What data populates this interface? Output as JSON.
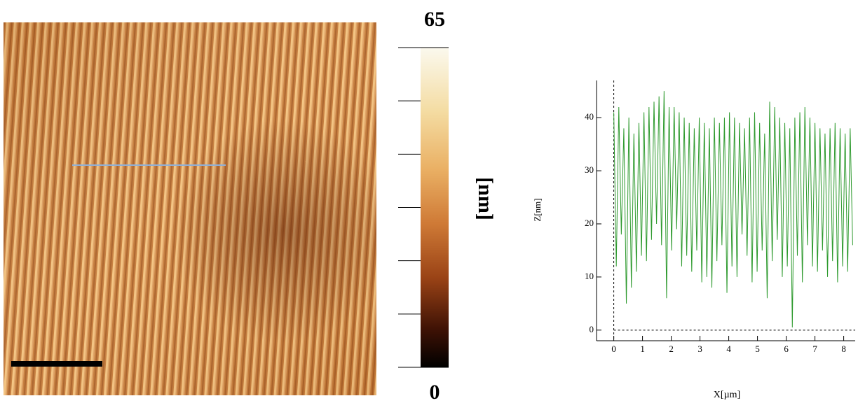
{
  "chart_data": [
    {
      "type": "image",
      "colorbar": {
        "range": [
          0,
          65
        ],
        "ticks": [
          0,
          65
        ],
        "label": "[nm]"
      }
    },
    {
      "type": "line",
      "xlabel": "X[µm]",
      "ylabel": "Z[nm]",
      "xlim": [
        -0.6,
        8.4
      ],
      "ylim": [
        -2,
        47
      ],
      "xticks": [
        0,
        1,
        2,
        3,
        4,
        5,
        6,
        7,
        8
      ],
      "yticks": [
        0,
        10,
        20,
        30,
        40
      ],
      "color": "#2e9a2e",
      "x": [
        0,
        0.0875,
        0.175,
        0.2625,
        0.35,
        0.4375,
        0.525,
        0.6125,
        0.7,
        0.7875,
        0.875,
        0.9625,
        1.05,
        1.1375,
        1.225,
        1.3125,
        1.4,
        1.4875,
        1.575,
        1.6625,
        1.75,
        1.8375,
        1.925,
        2.0125,
        2.1,
        2.1875,
        2.275,
        2.3625,
        2.45,
        2.5375,
        2.625,
        2.7125,
        2.8,
        2.8875,
        2.975,
        3.0625,
        3.15,
        3.2375,
        3.325,
        3.4125,
        3.5,
        3.5875,
        3.675,
        3.7625,
        3.85,
        3.9375,
        4.025,
        4.1125,
        4.2,
        4.2875,
        4.375,
        4.4625,
        4.55,
        4.6375,
        4.725,
        4.8125,
        4.9,
        4.9875,
        5.075,
        5.1625,
        5.25,
        5.3375,
        5.425,
        5.5125,
        5.6,
        5.6875,
        5.775,
        5.8625,
        5.95,
        6.0375,
        6.125,
        6.2125,
        6.3,
        6.3875,
        6.475,
        6.5625,
        6.65,
        6.7375,
        6.825,
        6.9125,
        7.0,
        7.0875,
        7.175,
        7.2625,
        7.35,
        7.4375,
        7.525,
        7.6125,
        7.7,
        7.7875,
        7.875,
        7.9625,
        8.05,
        8.1375,
        8.225,
        8.3125
      ],
      "values": [
        41,
        12,
        42,
        18,
        38,
        5,
        40,
        8,
        37,
        11,
        39,
        14,
        41,
        13,
        42,
        17,
        43,
        20,
        44,
        16,
        45,
        6,
        42,
        15,
        42,
        19,
        41,
        12,
        40,
        14,
        39,
        11,
        38,
        15,
        40,
        9,
        39,
        10,
        38,
        8,
        40,
        13,
        39,
        16,
        40,
        7,
        41,
        12,
        40,
        10,
        39,
        18,
        38,
        14,
        40,
        9,
        41,
        11,
        39,
        15,
        37,
        6,
        43,
        13,
        42,
        17,
        40,
        10,
        39,
        12,
        38,
        0.5,
        40,
        14,
        41,
        9,
        42,
        16,
        40,
        12,
        39,
        11,
        38,
        15,
        37,
        10,
        38,
        13,
        39,
        9,
        38,
        12,
        37,
        11,
        38,
        16
      ]
    }
  ]
}
